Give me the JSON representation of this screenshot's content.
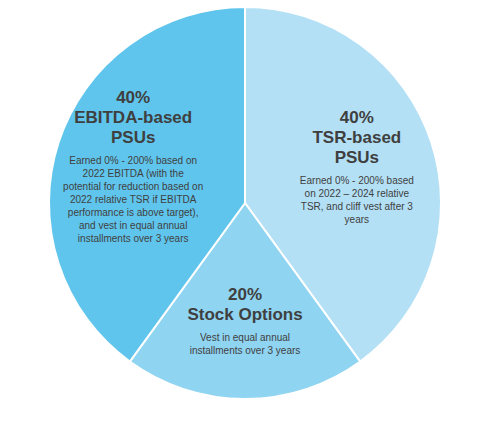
{
  "chart_data": {
    "type": "pie",
    "categories": [
      "TSR-based PSUs",
      "Stock Options",
      "EBITDA-based PSUs"
    ],
    "values": [
      40,
      20,
      40
    ],
    "value_labels": [
      "40%",
      "20%",
      "40%"
    ],
    "data_labels": true,
    "colors": [
      "#b3e0f5",
      "#8fd4f1",
      "#5fc5ec"
    ],
    "descriptions": [
      [
        "Earned 0% - 200% based",
        "on 2022 – 2024 relative",
        "TSR, and cliff vest after 3",
        "years"
      ],
      [
        "Vest in equal annual",
        "installments over 3 years"
      ],
      [
        "Earned 0% - 200% based on",
        "2022 EBITDA (with the",
        "potential for reduction based on",
        "2022 relative TSR if EBITDA",
        "performance is above target),",
        "and vest in equal annual",
        "installments over 3 years"
      ]
    ]
  }
}
